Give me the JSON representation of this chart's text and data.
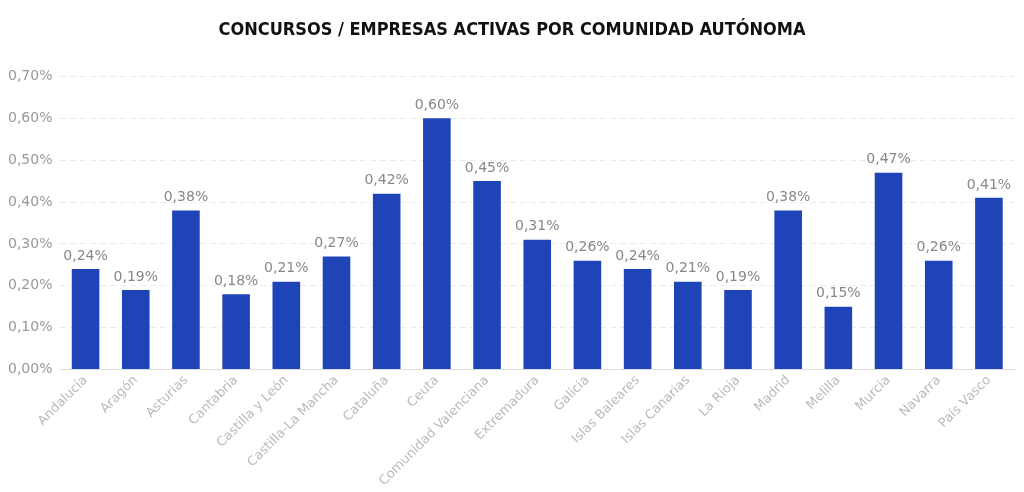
{
  "chart_data": {
    "type": "bar",
    "title": "CONCURSOS / EMPRESAS ACTIVAS POR COMUNIDAD AUTÓNOMA",
    "categories": [
      "Andalucía",
      "Aragón",
      "Asturias",
      "Cantabria",
      "Castilla y León",
      "Castilla-La Mancha",
      "Cataluña",
      "Ceuta",
      "Comunidad Valenciana",
      "Extremadura",
      "Galicia",
      "Islas Baleares",
      "Islas Canarias",
      "La Rioja",
      "Madrid",
      "Melilla",
      "Murcia",
      "Navarra",
      "País Vasco"
    ],
    "values": [
      0.24,
      0.19,
      0.38,
      0.18,
      0.21,
      0.27,
      0.42,
      0.6,
      0.45,
      0.31,
      0.26,
      0.24,
      0.21,
      0.19,
      0.38,
      0.15,
      0.47,
      0.26,
      0.41
    ],
    "value_labels": [
      "0,24%",
      "0,19%",
      "0,38%",
      "0,18%",
      "0,21%",
      "0,27%",
      "0,42%",
      "0,60%",
      "0,45%",
      "0,31%",
      "0,26%",
      "0,24%",
      "0,21%",
      "0,19%",
      "0,38%",
      "0,15%",
      "0,47%",
      "0,26%",
      "0,41%"
    ],
    "color": "#1f44b8",
    "ylim": [
      0,
      0.7
    ],
    "yticks": [
      {
        "value": 0,
        "label": "0,00%"
      },
      {
        "value": 0.1,
        "label": "0,10%"
      },
      {
        "value": 0.2,
        "label": "0,20%"
      },
      {
        "value": 0.3,
        "label": "0,30%"
      },
      {
        "value": 0.4,
        "label": "0,40%"
      },
      {
        "value": 0.5,
        "label": "0,50%"
      },
      {
        "value": 0.6,
        "label": "0,60%"
      },
      {
        "value": 0.7,
        "label": "0,70%"
      }
    ],
    "grid": "y",
    "legend": false
  }
}
